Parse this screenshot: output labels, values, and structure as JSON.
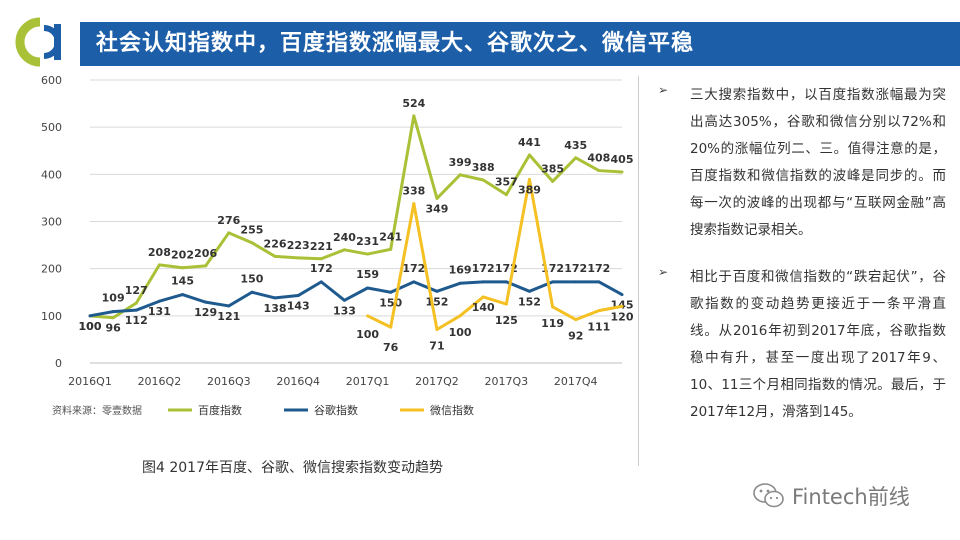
{
  "header": {
    "title": "社会认知指数中，百度指数涨幅最大、谷歌次之、微信平稳"
  },
  "chart_data": {
    "type": "line",
    "ylim": [
      0,
      600
    ],
    "yticks": [
      0,
      100,
      200,
      300,
      400,
      500,
      600
    ],
    "x_tick_labels": [
      "2016Q1",
      "2016Q2",
      "2016Q3",
      "2016Q4",
      "2017Q1",
      "2017Q2",
      "2017Q3",
      "2017Q4"
    ],
    "grid": true,
    "legend_placement": "bottom",
    "series": [
      {
        "name": "百度指数",
        "color": "#a9c136",
        "start_index": 0,
        "values": [
          100,
          96,
          127,
          208,
          202,
          206,
          276,
          255,
          226,
          223,
          221,
          240,
          231,
          241,
          524,
          349,
          399,
          388,
          357,
          441,
          385,
          435,
          408,
          405
        ]
      },
      {
        "name": "谷歌指数",
        "color": "#1f5a8f",
        "start_index": 0,
        "values": [
          100,
          109,
          112,
          131,
          145,
          129,
          121,
          150,
          138,
          143,
          172,
          133,
          159,
          150,
          172,
          152,
          169,
          172,
          172,
          152,
          172,
          172,
          172,
          145
        ]
      },
      {
        "name": "微信指数",
        "color": "#f4c022",
        "start_index": 12,
        "values": [
          100,
          76,
          338,
          71,
          100,
          140,
          125,
          389,
          119,
          92,
          111,
          120
        ]
      }
    ]
  },
  "source": "资料来源：零壹数据",
  "caption": "图4   2017年百度、谷歌、微信搜索指数变动趋势",
  "bullets": [
    {
      "mark": "➢",
      "text": "三大搜索指数中，以百度指数涨幅最为突出高达305%，谷歌和微信分别以72%和20%的涨幅位列二、三。值得注意的是，百度指数和微信指数的波峰是同步的。而每一次的波峰的出现都与“互联网金融”高搜索指数记录相关。"
    },
    {
      "mark": "➢",
      "text": "相比于百度和微信指数的“跌宕起伏”，谷歌指数的变动趋势更接近于一条平滑直线。从2016年初到2017年底，谷歌指数稳中有升，甚至一度出现了2017年9、10、11三个月相同指数的情况。最后，于2017年12月，滑落到145。"
    }
  ],
  "watermark": {
    "icon": "wechat-icon",
    "text": "Fintech前线"
  }
}
